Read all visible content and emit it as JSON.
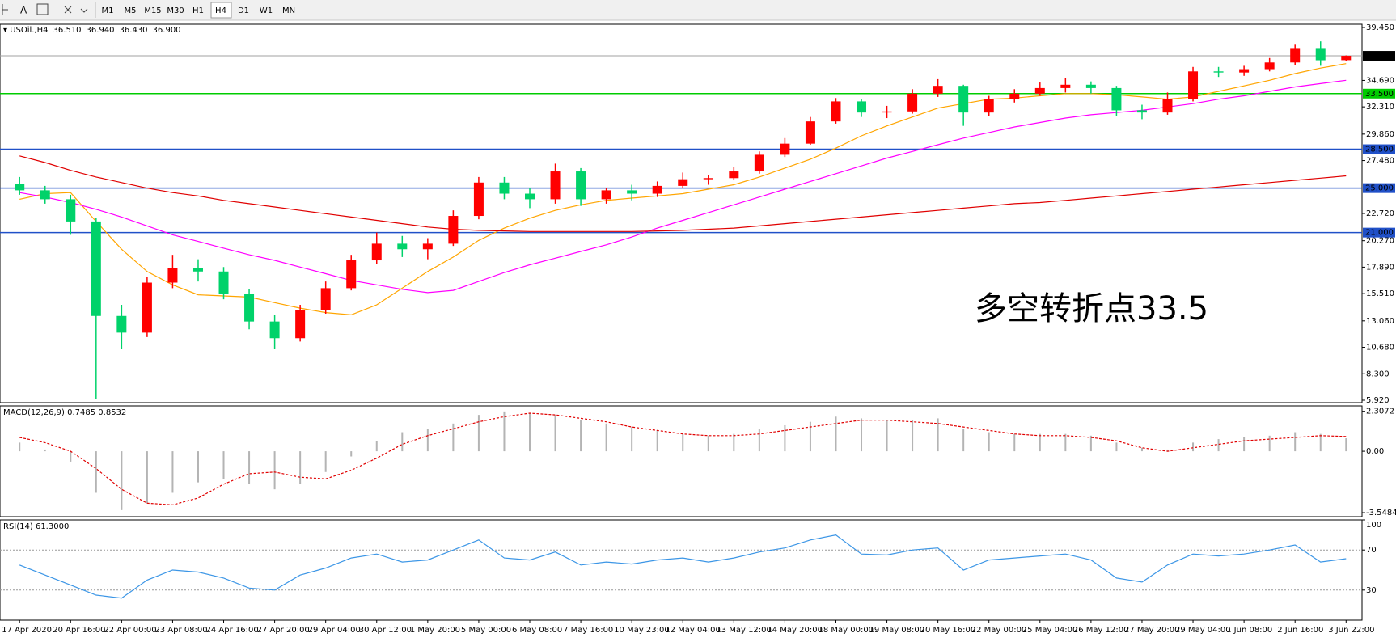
{
  "toolbar": {
    "timeframes": [
      "M1",
      "M5",
      "M15",
      "M30",
      "H1",
      "H4",
      "D1",
      "W1",
      "MN"
    ],
    "active": 5
  },
  "chart_data": [
    {
      "type": "candlestick",
      "title": "USOil.,H4",
      "header_values": [
        "36.510",
        "36.940",
        "36.430",
        "36.900"
      ],
      "up_color": "#ff0000",
      "down_color": "#00d26a",
      "open": [
        25.4,
        24.8,
        24.0,
        22.0,
        13.5,
        12.0,
        16.5,
        17.8,
        17.5,
        15.5,
        13.0,
        11.5,
        14.0,
        16.0,
        18.5,
        20.0,
        19.5,
        20.0,
        22.5,
        25.5,
        24.5,
        24.0,
        26.5,
        24.0,
        24.8,
        24.5,
        25.2,
        25.8,
        25.9,
        26.5,
        28.0,
        29.0,
        31.0,
        32.8,
        31.8,
        31.9,
        33.5,
        34.2,
        31.8,
        33.0,
        33.5,
        34.0,
        34.3,
        34.0,
        32.0,
        31.8,
        33.0,
        35.5,
        35.4,
        35.7,
        36.3,
        37.6,
        36.51
      ],
      "high": [
        26.0,
        25.2,
        24.4,
        22.3,
        14.5,
        17.0,
        19.0,
        18.6,
        17.9,
        15.9,
        13.6,
        14.5,
        16.6,
        19.0,
        21.0,
        20.7,
        20.5,
        23.0,
        26.0,
        26.0,
        25.0,
        27.2,
        26.8,
        25.0,
        25.3,
        25.6,
        26.4,
        26.2,
        26.9,
        28.3,
        29.5,
        31.4,
        33.1,
        33.0,
        32.4,
        33.9,
        34.8,
        34.3,
        33.3,
        33.9,
        34.5,
        34.9,
        34.6,
        34.2,
        32.5,
        33.6,
        35.9,
        35.9,
        36.0,
        36.7,
        37.9,
        38.2,
        36.94
      ],
      "low": [
        24.4,
        23.6,
        20.8,
        6.0,
        10.5,
        11.6,
        16.0,
        16.6,
        15.0,
        12.3,
        10.5,
        11.2,
        13.7,
        15.8,
        18.2,
        18.8,
        18.6,
        19.8,
        22.2,
        24.0,
        23.2,
        23.6,
        23.4,
        23.6,
        23.9,
        24.2,
        25.0,
        25.3,
        25.7,
        26.3,
        27.8,
        28.9,
        30.8,
        31.4,
        31.3,
        31.7,
        33.2,
        30.6,
        31.5,
        32.7,
        33.3,
        33.6,
        33.5,
        31.5,
        31.2,
        31.6,
        32.8,
        35.0,
        35.1,
        35.5,
        36.1,
        36.0,
        36.43
      ],
      "close": [
        24.8,
        24.0,
        22.0,
        13.5,
        12.0,
        16.5,
        17.8,
        17.5,
        15.5,
        13.0,
        11.5,
        14.0,
        16.0,
        18.5,
        20.0,
        19.5,
        20.0,
        22.5,
        25.5,
        24.5,
        24.0,
        26.5,
        24.0,
        24.8,
        24.5,
        25.2,
        25.8,
        25.9,
        26.5,
        28.0,
        29.0,
        31.0,
        32.8,
        31.8,
        31.9,
        33.5,
        34.2,
        31.8,
        33.0,
        33.5,
        34.0,
        34.3,
        34.0,
        32.0,
        31.8,
        33.0,
        35.5,
        35.4,
        35.7,
        36.3,
        37.6,
        36.5,
        36.9
      ],
      "moving_averages": [
        {
          "color": "#ffa500",
          "values": [
            24.0,
            24.5,
            24.6,
            22.0,
            19.5,
            17.5,
            16.3,
            15.4,
            15.3,
            15.2,
            14.7,
            14.2,
            13.8,
            13.6,
            14.5,
            16.0,
            17.5,
            18.8,
            20.3,
            21.4,
            22.3,
            23.0,
            23.5,
            23.9,
            24.1,
            24.3,
            24.5,
            24.9,
            25.3,
            26.0,
            26.8,
            27.6,
            28.6,
            29.7,
            30.6,
            31.4,
            32.2,
            32.6,
            33.0,
            33.1,
            33.3,
            33.5,
            33.5,
            33.4,
            33.2,
            33.0,
            33.2,
            33.7,
            34.2,
            34.7,
            35.3,
            35.8,
            36.2
          ]
        },
        {
          "color": "#ff00ff",
          "values": [
            24.6,
            24.2,
            23.7,
            23.1,
            22.4,
            21.6,
            20.8,
            20.2,
            19.6,
            19.0,
            18.5,
            17.9,
            17.3,
            16.7,
            16.3,
            15.9,
            15.6,
            15.8,
            16.6,
            17.4,
            18.1,
            18.7,
            19.3,
            19.9,
            20.6,
            21.4,
            22.1,
            22.8,
            23.5,
            24.2,
            24.9,
            25.6,
            26.3,
            27.0,
            27.7,
            28.3,
            28.9,
            29.5,
            30.0,
            30.5,
            30.9,
            31.3,
            31.6,
            31.8,
            32.0,
            32.3,
            32.6,
            33.0,
            33.3,
            33.7,
            34.1,
            34.4,
            34.7
          ]
        },
        {
          "color": "#e00000",
          "values": [
            27.9,
            27.3,
            26.6,
            26.0,
            25.5,
            25.0,
            24.6,
            24.3,
            23.9,
            23.6,
            23.3,
            23.0,
            22.7,
            22.4,
            22.1,
            21.8,
            21.5,
            21.3,
            21.2,
            21.15,
            21.1,
            21.1,
            21.1,
            21.1,
            21.1,
            21.15,
            21.2,
            21.3,
            21.4,
            21.6,
            21.8,
            22.0,
            22.2,
            22.4,
            22.6,
            22.8,
            23.0,
            23.2,
            23.4,
            23.6,
            23.7,
            23.9,
            24.1,
            24.3,
            24.5,
            24.7,
            24.9,
            25.1,
            25.3,
            25.5,
            25.7,
            25.9,
            26.1
          ]
        }
      ],
      "hlines": [
        {
          "value": 33.5,
          "label": "33.500",
          "color": "#00cc00"
        },
        {
          "value": 28.5,
          "label": "28.500",
          "color": "#2050c8"
        },
        {
          "value": 25.0,
          "label": "25.000",
          "color": "#2050c8"
        },
        {
          "value": 21.0,
          "label": "21.000",
          "color": "#2050c8"
        }
      ],
      "price_line": {
        "value": 36.9,
        "label": "36.900",
        "color": "#a0a0a0"
      },
      "annotation": "多空转折点33.5",
      "annotation_color": "#e02020",
      "ylim": [
        5.7,
        39.74
      ],
      "yticks": [
        {
          "value": 39.45,
          "label": "39.450"
        },
        {
          "value": 34.69,
          "label": "34.690"
        },
        {
          "value": 32.31,
          "label": "32.310"
        },
        {
          "value": 29.86,
          "label": "29.860"
        },
        {
          "value": 27.48,
          "label": "27.480"
        },
        {
          "value": 22.72,
          "label": "22.720"
        },
        {
          "value": 20.27,
          "label": "20.270"
        },
        {
          "value": 17.89,
          "label": "17.890"
        },
        {
          "value": 15.51,
          "label": "15.510"
        },
        {
          "value": 13.06,
          "label": "13.060"
        },
        {
          "value": 10.68,
          "label": "10.680"
        },
        {
          "value": 8.3,
          "label": "8.300"
        },
        {
          "value": 5.92,
          "label": "5.920"
        }
      ]
    },
    {
      "type": "macd",
      "title": "MACD(12,26,9) 0.7485 0.8532",
      "histogram": {
        "color": "#b4b4b4",
        "values": [
          0.5,
          0.1,
          -0.6,
          -2.4,
          -3.4,
          -3.0,
          -2.4,
          -1.8,
          -1.6,
          -1.9,
          -2.2,
          -1.9,
          -1.2,
          -0.3,
          0.6,
          1.1,
          1.3,
          1.6,
          2.1,
          2.3,
          2.2,
          2.1,
          1.8,
          1.6,
          1.4,
          1.2,
          1.0,
          0.9,
          1.0,
          1.3,
          1.5,
          1.7,
          2.0,
          1.9,
          1.8,
          1.8,
          1.9,
          1.3,
          1.1,
          1.0,
          1.0,
          1.0,
          0.9,
          0.5,
          0.2,
          0.1,
          0.5,
          0.7,
          0.8,
          0.9,
          1.1,
          1.0,
          0.7485
        ]
      },
      "signal": {
        "color": "#e00000",
        "values": [
          0.8,
          0.5,
          0.0,
          -1.0,
          -2.2,
          -3.0,
          -3.1,
          -2.7,
          -1.9,
          -1.3,
          -1.2,
          -1.5,
          -1.6,
          -1.1,
          -0.4,
          0.4,
          0.9,
          1.3,
          1.7,
          2.0,
          2.2,
          2.1,
          1.9,
          1.7,
          1.4,
          1.2,
          1.0,
          0.9,
          0.9,
          1.0,
          1.2,
          1.4,
          1.6,
          1.8,
          1.8,
          1.7,
          1.6,
          1.4,
          1.2,
          1.0,
          0.9,
          0.9,
          0.8,
          0.6,
          0.2,
          0.0,
          0.2,
          0.4,
          0.6,
          0.7,
          0.8,
          0.9,
          0.8532
        ]
      },
      "ylim": [
        -3.78,
        2.62
      ],
      "yticks": [
        2.3072,
        {
          "value": 0,
          "label": "0.00"
        },
        -3.5484
      ]
    },
    {
      "type": "rsi",
      "title": "RSI(14) 61.3000",
      "color": "#3c96e6",
      "values": [
        55,
        45,
        35,
        25,
        22,
        40,
        50,
        48,
        42,
        32,
        30,
        45,
        52,
        62,
        66,
        58,
        60,
        70,
        80,
        62,
        60,
        68,
        55,
        58,
        56,
        60,
        62,
        58,
        62,
        68,
        72,
        80,
        85,
        66,
        65,
        70,
        72,
        50,
        60,
        62,
        64,
        66,
        60,
        42,
        38,
        55,
        66,
        64,
        66,
        70,
        75,
        58,
        61.3
      ],
      "ylim": [
        0,
        100
      ],
      "yticks": [
        100,
        70,
        30
      ],
      "grid_levels": [
        70,
        30
      ],
      "categories": [
        "17 Apr 2020",
        null,
        "20 Apr 16:00",
        null,
        "22 Apr 00:00",
        null,
        "23 Apr 08:00",
        null,
        "24 Apr 16:00",
        null,
        "27 Apr 20:00",
        null,
        "29 Apr 04:00",
        null,
        "30 Apr 12:00",
        null,
        "1 May 20:00",
        null,
        "5 May 00:00",
        null,
        "6 May 08:00",
        null,
        "7 May 16:00",
        null,
        "10 May 23:00",
        null,
        "12 May 04:00",
        null,
        "13 May 12:00",
        null,
        "14 May 20:00",
        null,
        "18 May 00:00",
        null,
        "19 May 08:00",
        null,
        "20 May 16:00",
        null,
        "22 May 00:00",
        null,
        "25 May 04:00",
        null,
        "26 May 12:00",
        null,
        "27 May 20:00",
        null,
        "29 May 04:00",
        null,
        "1 Jun 08:00",
        null,
        "2 Jun 16:00",
        null,
        "3 Jun 22:00"
      ]
    }
  ]
}
